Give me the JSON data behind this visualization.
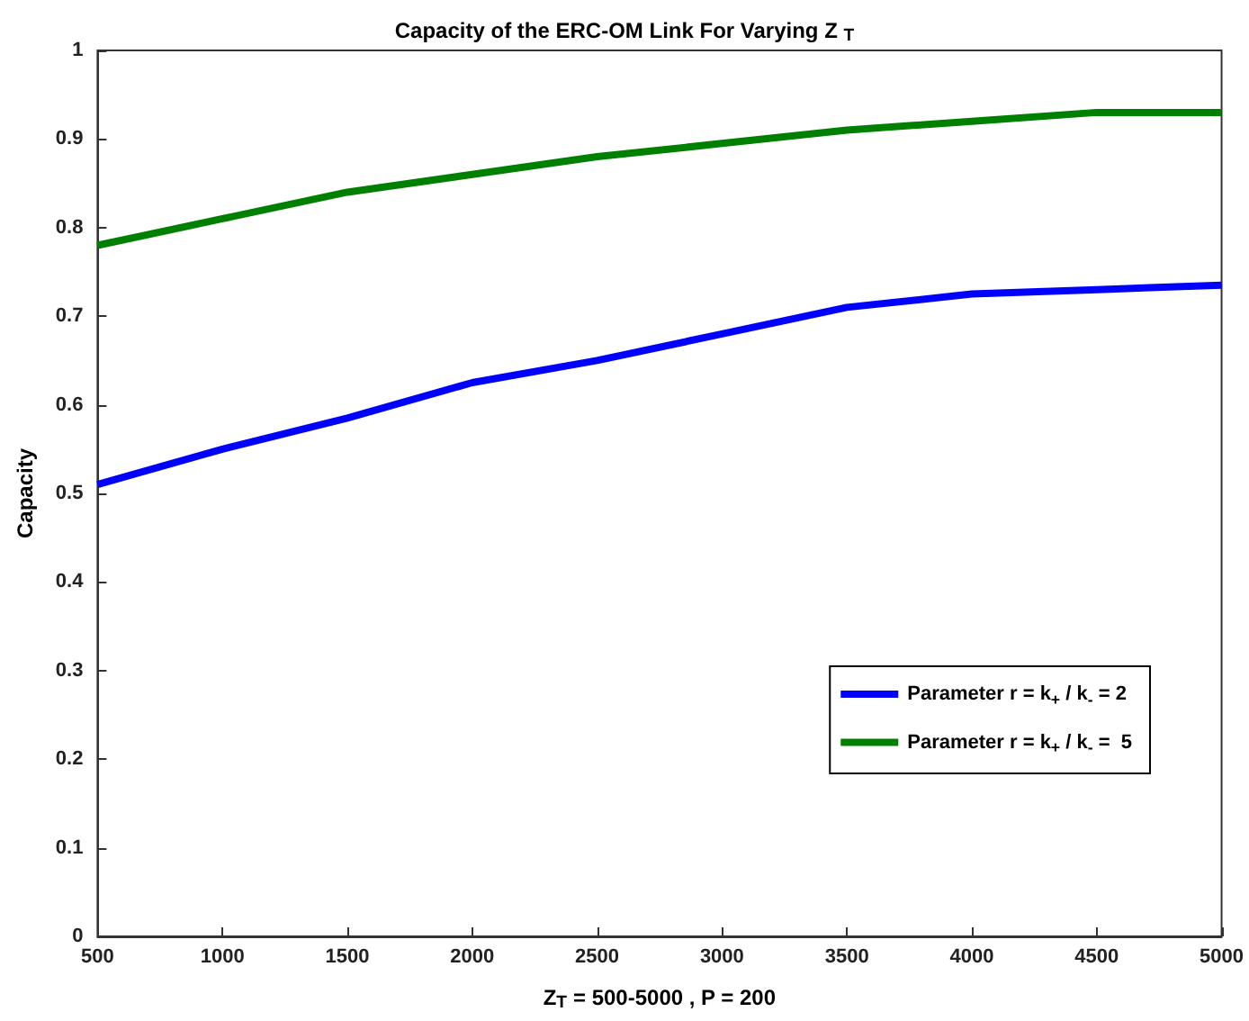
{
  "chart_data": {
    "type": "line",
    "title": "Capacity of the ERC-OM Link For Varying Z $_{T}$",
    "xlabel": "Z$_{T}$ = 500-5000 , P = 200",
    "ylabel": "Capacity",
    "x": [
      500,
      1000,
      1500,
      2000,
      2500,
      3000,
      3500,
      4000,
      4500,
      5000
    ],
    "series": [
      {
        "name": "Parameter r = k$_{+}$ / k$_{-}$ = 2",
        "color": "#0000ff",
        "values": [
          0.51,
          0.55,
          0.585,
          0.625,
          0.65,
          0.68,
          0.71,
          0.725,
          0.73,
          0.735
        ]
      },
      {
        "name": "Parameter r = k$_{+}$ / k$_{-}$ =  5",
        "color": "#008000",
        "values": [
          0.78,
          0.81,
          0.84,
          0.86,
          0.88,
          0.895,
          0.91,
          0.92,
          0.93,
          0.93
        ]
      }
    ],
    "xlim": [
      500,
      5000
    ],
    "xticks": [
      500,
      1000,
      1500,
      2000,
      2500,
      3000,
      3500,
      4000,
      4500,
      5000
    ],
    "ylim": [
      0,
      1
    ],
    "yticks": [
      0,
      0.1,
      0.2,
      0.3,
      0.4,
      0.5,
      0.6,
      0.7,
      0.8,
      0.9,
      1
    ],
    "grid": false,
    "legend": "right",
    "marker": "none",
    "line_style": "solid"
  }
}
